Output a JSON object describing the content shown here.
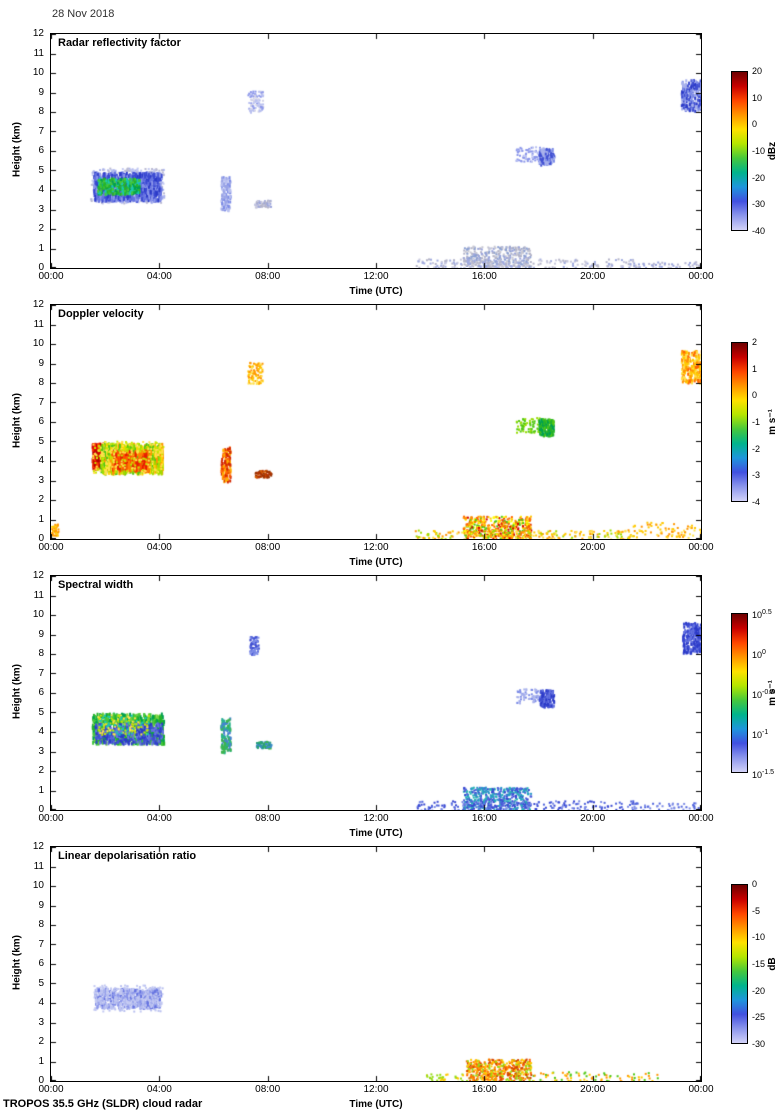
{
  "page": {
    "date_label": "28 Nov 2018",
    "footer_label": "TROPOS 35.5 GHz (SLDR) cloud radar",
    "background": "#ffffff"
  },
  "colormap": {
    "stops": [
      "#6e0000",
      "#c80000",
      "#ff4600",
      "#ff9600",
      "#ffe100",
      "#b4e600",
      "#46c83c",
      "#00b48c",
      "#1e96dc",
      "#4150e0",
      "#8c96ec",
      "#d2d2f8"
    ]
  },
  "chart_data": [
    {
      "type": "heatmap",
      "title": "Radar reflectivity factor",
      "xlabel": "Time (UTC)",
      "ylabel": "Height (km)",
      "xlim": [
        0,
        24
      ],
      "ylim": [
        0,
        12
      ],
      "xtick_hours": [
        0,
        4,
        8,
        12,
        16,
        20,
        24
      ],
      "xtick_labels": [
        "00:00",
        "04:00",
        "08:00",
        "12:00",
        "16:00",
        "20:00",
        "00:00"
      ],
      "ytick_values": [
        0,
        1,
        2,
        3,
        4,
        5,
        6,
        7,
        8,
        9,
        10,
        11,
        12
      ],
      "colorbar": {
        "unit": "dBz",
        "range": [
          20,
          -40
        ],
        "ticks": [
          "20",
          "10",
          "0",
          "-10",
          "-20",
          "-30",
          "-40"
        ]
      },
      "features": [
        {
          "name": "midlevel-cloud-fringe",
          "t": [
            1.45,
            4.15
          ],
          "h": [
            3.35,
            5.15
          ],
          "n": 420,
          "size": 2,
          "sy": 1,
          "colors": [
            "#c3c9f2",
            "#aab3ec",
            "#b9b9d2"
          ]
        },
        {
          "name": "midlevel-cloud-body",
          "t": [
            1.55,
            4.05
          ],
          "h": [
            3.55,
            4.95
          ],
          "n": 900,
          "size": 2,
          "sy": 2,
          "colors": [
            "#3a49d2",
            "#2b3ac8",
            "#6573e0",
            "#8c97ea"
          ]
        },
        {
          "name": "midlevel-cloud-core",
          "t": [
            1.7,
            3.25
          ],
          "h": [
            3.85,
            4.65
          ],
          "n": 320,
          "size": 2,
          "sy": 1.5,
          "colors": [
            "#28b428",
            "#46c83c",
            "#00a050",
            "#19c8b4"
          ]
        },
        {
          "name": "virga-0630",
          "t": [
            6.25,
            6.6
          ],
          "h": [
            3.0,
            4.75
          ],
          "n": 120,
          "size": 2,
          "sy": 1.5,
          "colors": [
            "#9aa4e6",
            "#b9c0f0",
            "#7d8ce6"
          ]
        },
        {
          "name": "cirrus-0730",
          "t": [
            7.25,
            7.8
          ],
          "h": [
            8.0,
            9.1
          ],
          "n": 95,
          "size": 2,
          "sy": 1,
          "colors": [
            "#b9c0f0",
            "#8c97ea",
            "#d2d2e6"
          ]
        },
        {
          "name": "patch-0745",
          "t": [
            7.5,
            8.1
          ],
          "h": [
            3.15,
            3.5
          ],
          "n": 75,
          "size": 2,
          "sy": 1,
          "colors": [
            "#b4b4c8",
            "#9aa4dc",
            "#c8c8dc"
          ]
        },
        {
          "name": "midlevel-1730",
          "t": [
            17.15,
            18.05
          ],
          "h": [
            5.5,
            6.25
          ],
          "n": 70,
          "size": 2,
          "sy": 1,
          "colors": [
            "#b9c0f0",
            "#8c97ea"
          ]
        },
        {
          "name": "midlevel-1815",
          "t": [
            18.0,
            18.55
          ],
          "h": [
            5.35,
            6.2
          ],
          "n": 140,
          "size": 2,
          "sy": 1.5,
          "colors": [
            "#4150d2",
            "#7d8ce6",
            "#aab3ec"
          ]
        },
        {
          "name": "high-cloud-2330",
          "t": [
            23.25,
            24.0
          ],
          "h": [
            8.1,
            9.7
          ],
          "n": 230,
          "size": 2,
          "sy": 1.5,
          "colors": [
            "#4150d2",
            "#7d8ce6",
            "#aab3ec",
            "#2b3ac8"
          ]
        },
        {
          "name": "boundary-layer-dense",
          "t": [
            15.2,
            17.7
          ],
          "h": [
            0.05,
            1.15
          ],
          "n": 380,
          "size": 2,
          "sy": 1,
          "colors": [
            "#b4b4c8",
            "#9aa4dc",
            "#8ca0d2",
            "#c8c8d2"
          ]
        },
        {
          "name": "boundary-layer-sparse",
          "t": [
            13.4,
            21.6
          ],
          "h": [
            0.0,
            0.5
          ],
          "n": 230,
          "size": 2,
          "sy": 1,
          "colors": [
            "#b4b4c8",
            "#a0aade",
            "#c8c8dc"
          ]
        },
        {
          "name": "surface-specks",
          "t": [
            21.5,
            24.0
          ],
          "h": [
            0.0,
            0.35
          ],
          "n": 50,
          "size": 2,
          "sy": 1,
          "colors": [
            "#b4b4d2",
            "#9aa4dc"
          ]
        }
      ]
    },
    {
      "type": "heatmap",
      "title": "Doppler velocity",
      "xlabel": "Time (UTC)",
      "ylabel": "Height (km)",
      "xlim": [
        0,
        24
      ],
      "ylim": [
        0,
        12
      ],
      "xtick_hours": [
        0,
        4,
        8,
        12,
        16,
        20,
        24
      ],
      "xtick_labels": [
        "00:00",
        "04:00",
        "08:00",
        "12:00",
        "16:00",
        "20:00",
        "00:00"
      ],
      "ytick_values": [
        0,
        1,
        2,
        3,
        4,
        5,
        6,
        7,
        8,
        9,
        10,
        11,
        12
      ],
      "colorbar": {
        "unit": "m s⁻¹",
        "range": [
          2,
          -4
        ],
        "ticks": [
          "2",
          "1",
          "0",
          "-1",
          "-2",
          "-3",
          "-4"
        ]
      },
      "features": [
        {
          "name": "midlevel-cloud-red-edge",
          "t": [
            1.5,
            1.9
          ],
          "h": [
            3.75,
            4.95
          ],
          "n": 150,
          "size": 2,
          "sy": 2.5,
          "colors": [
            "#d40000",
            "#ff3c00",
            "#b40000"
          ]
        },
        {
          "name": "midlevel-cloud-body",
          "t": [
            1.8,
            4.1
          ],
          "h": [
            3.55,
            4.95
          ],
          "n": 850,
          "size": 2,
          "sy": 3,
          "colors": [
            "#ffd200",
            "#a0dc00",
            "#50c814",
            "#ff9600",
            "#ffe14b"
          ]
        },
        {
          "name": "midlevel-cloud-red-streaks",
          "t": [
            2.2,
            3.6
          ],
          "h": [
            3.7,
            4.6
          ],
          "n": 170,
          "size": 2,
          "sy": 3,
          "colors": [
            "#ff5000",
            "#e61e00",
            "#ff7d00"
          ]
        },
        {
          "name": "midlevel-cloud-fringe",
          "t": [
            1.5,
            4.15
          ],
          "h": [
            3.4,
            5.05
          ],
          "n": 200,
          "size": 2,
          "sy": 1,
          "colors": [
            "#ffe14b",
            "#c8e600"
          ]
        },
        {
          "name": "virga-0630",
          "t": [
            6.25,
            6.6
          ],
          "h": [
            3.0,
            4.75
          ],
          "n": 120,
          "size": 2,
          "sy": 1.5,
          "colors": [
            "#ff6400",
            "#d42800",
            "#ffaf00"
          ]
        },
        {
          "name": "cirrus-0730",
          "t": [
            7.25,
            7.8
          ],
          "h": [
            8.0,
            9.1
          ],
          "n": 100,
          "size": 2,
          "sy": 1,
          "colors": [
            "#ffc800",
            "#ff9600",
            "#ffe14b"
          ]
        },
        {
          "name": "patch-0745",
          "t": [
            7.5,
            8.1
          ],
          "h": [
            3.2,
            3.55
          ],
          "n": 75,
          "size": 2,
          "sy": 1,
          "colors": [
            "#b43200",
            "#d45a00",
            "#963200"
          ]
        },
        {
          "name": "midlevel-1730",
          "t": [
            17.15,
            18.05
          ],
          "h": [
            5.5,
            6.25
          ],
          "n": 70,
          "size": 2,
          "sy": 1,
          "colors": [
            "#50c814",
            "#96dc00"
          ]
        },
        {
          "name": "midlevel-1815",
          "t": [
            18.0,
            18.55
          ],
          "h": [
            5.35,
            6.2
          ],
          "n": 140,
          "size": 2,
          "sy": 1.5,
          "colors": [
            "#28b428",
            "#50c814",
            "#00a050"
          ]
        },
        {
          "name": "high-cloud-2330",
          "t": [
            23.25,
            24.0
          ],
          "h": [
            8.05,
            9.7
          ],
          "n": 230,
          "size": 2,
          "sy": 1.5,
          "colors": [
            "#ffc800",
            "#ff9600",
            "#ffe14b",
            "#ff6400"
          ]
        },
        {
          "name": "boundary-layer-dense",
          "t": [
            15.2,
            17.7
          ],
          "h": [
            0.05,
            1.2
          ],
          "n": 500,
          "size": 2,
          "sy": 1,
          "colors": [
            "#d40000",
            "#ff6400",
            "#ffc800",
            "#50c814",
            "#ffff00",
            "#ff9600"
          ]
        },
        {
          "name": "boundary-layer-sparse",
          "t": [
            13.4,
            21.6
          ],
          "h": [
            0.0,
            0.5
          ],
          "n": 220,
          "size": 2,
          "sy": 1,
          "colors": [
            "#ffc800",
            "#ffe14b",
            "#a0dc00",
            "#ff9600"
          ]
        },
        {
          "name": "surface-specks",
          "t": [
            21.3,
            24.0
          ],
          "h": [
            0.1,
            0.9
          ],
          "n": 80,
          "size": 2,
          "sy": 1,
          "colors": [
            "#ffc800",
            "#ffe14b",
            "#ff9600"
          ]
        },
        {
          "name": "left-edge-patch",
          "t": [
            0.0,
            0.25
          ],
          "h": [
            0.2,
            0.8
          ],
          "n": 35,
          "size": 2,
          "sy": 1,
          "colors": [
            "#ff9600",
            "#ffc800"
          ]
        }
      ]
    },
    {
      "type": "heatmap",
      "title": "Spectral width",
      "xlabel": "Time (UTC)",
      "ylabel": "Height (km)",
      "xlim": [
        0,
        24
      ],
      "ylim": [
        0,
        12
      ],
      "xtick_hours": [
        0,
        4,
        8,
        12,
        16,
        20,
        24
      ],
      "xtick_labels": [
        "00:00",
        "04:00",
        "08:00",
        "12:00",
        "16:00",
        "20:00",
        "00:00"
      ],
      "ytick_values": [
        0,
        1,
        2,
        3,
        4,
        5,
        6,
        7,
        8,
        9,
        10,
        11,
        12
      ],
      "colorbar": {
        "unit": "m s⁻¹",
        "scale": "log",
        "ticks": [
          "10^0.5",
          "10^0",
          "10^-0.5",
          "10^-1",
          "10^-1.5"
        ]
      },
      "features": [
        {
          "name": "midlevel-cloud-body",
          "t": [
            1.5,
            4.15
          ],
          "h": [
            3.5,
            5.0
          ],
          "n": 850,
          "size": 2,
          "sy": 2,
          "colors": [
            "#46c83c",
            "#28b428",
            "#78d23c",
            "#00a050"
          ]
        },
        {
          "name": "midlevel-cloud-blue",
          "t": [
            1.6,
            4.1
          ],
          "h": [
            3.45,
            4.5
          ],
          "n": 380,
          "size": 2,
          "sy": 1.5,
          "colors": [
            "#4150d2",
            "#2b3ac8",
            "#6573e0"
          ]
        },
        {
          "name": "midlevel-cloud-specks",
          "t": [
            1.7,
            3.6
          ],
          "h": [
            3.9,
            4.9
          ],
          "n": 140,
          "size": 2,
          "sy": 1,
          "colors": [
            "#c8e600",
            "#ffe14b",
            "#19c8b4"
          ]
        },
        {
          "name": "virga-0630",
          "t": [
            6.25,
            6.6
          ],
          "h": [
            3.0,
            4.75
          ],
          "n": 120,
          "size": 2,
          "sy": 1.5,
          "colors": [
            "#3cb450",
            "#4682d2",
            "#28b48c"
          ]
        },
        {
          "name": "cirrus-0730",
          "t": [
            7.3,
            7.65
          ],
          "h": [
            8.0,
            8.95
          ],
          "n": 85,
          "size": 2,
          "sy": 1,
          "colors": [
            "#4150d2",
            "#7d8ce6"
          ]
        },
        {
          "name": "patch-0745",
          "t": [
            7.55,
            8.1
          ],
          "h": [
            3.2,
            3.55
          ],
          "n": 75,
          "size": 2,
          "sy": 1,
          "colors": [
            "#28a078",
            "#3c8cc8",
            "#3cb450"
          ]
        },
        {
          "name": "midlevel-1730",
          "t": [
            17.15,
            18.05
          ],
          "h": [
            5.5,
            6.25
          ],
          "n": 70,
          "size": 2,
          "sy": 1,
          "colors": [
            "#7d8ce6",
            "#aab3ec"
          ]
        },
        {
          "name": "midlevel-1815",
          "t": [
            18.0,
            18.55
          ],
          "h": [
            5.35,
            6.2
          ],
          "n": 140,
          "size": 2,
          "sy": 1.5,
          "colors": [
            "#4150d2",
            "#2b3ac8",
            "#6573e0"
          ]
        },
        {
          "name": "high-cloud-2330",
          "t": [
            23.3,
            24.0
          ],
          "h": [
            8.1,
            9.65
          ],
          "n": 220,
          "size": 2,
          "sy": 1.5,
          "colors": [
            "#3a49d2",
            "#6573e0",
            "#2b3ac8"
          ]
        },
        {
          "name": "boundary-layer-dense",
          "t": [
            15.2,
            17.7
          ],
          "h": [
            0.05,
            1.2
          ],
          "n": 500,
          "size": 2,
          "sy": 1,
          "colors": [
            "#3a49d2",
            "#5064dc",
            "#2896c8",
            "#28b4b4"
          ]
        },
        {
          "name": "boundary-layer-sparse",
          "t": [
            13.4,
            21.6
          ],
          "h": [
            0.0,
            0.5
          ],
          "n": 200,
          "size": 2,
          "sy": 1,
          "colors": [
            "#5064dc",
            "#7d8ce6",
            "#3a49d2"
          ]
        },
        {
          "name": "surface-specks",
          "t": [
            21.5,
            24.0
          ],
          "h": [
            0.0,
            0.4
          ],
          "n": 45,
          "size": 2,
          "sy": 1,
          "colors": [
            "#5064dc",
            "#7d8ce6"
          ]
        }
      ]
    },
    {
      "type": "heatmap",
      "title": "Linear depolarisation ratio",
      "xlabel": "Time (UTC)",
      "ylabel": "Height (km)",
      "xlim": [
        0,
        24
      ],
      "ylim": [
        0,
        12
      ],
      "xtick_hours": [
        0,
        4,
        8,
        12,
        16,
        20,
        24
      ],
      "xtick_labels": [
        "00:00",
        "04:00",
        "08:00",
        "12:00",
        "16:00",
        "20:00",
        "00:00"
      ],
      "ytick_values": [
        0,
        1,
        2,
        3,
        4,
        5,
        6,
        7,
        8,
        9,
        10,
        11,
        12
      ],
      "colorbar": {
        "unit": "dB",
        "range": [
          0,
          -30
        ],
        "ticks": [
          "0",
          "-5",
          "-10",
          "-15",
          "-20",
          "-25",
          "-30"
        ]
      },
      "features": [
        {
          "name": "midlevel-cloud",
          "t": [
            1.6,
            4.05
          ],
          "h": [
            3.8,
            4.8
          ],
          "n": 550,
          "size": 2,
          "sy": 1.5,
          "colors": [
            "#6573e0",
            "#8c97ea",
            "#aab3ec",
            "#c3c9f2"
          ]
        },
        {
          "name": "midlevel-cloud-fringe",
          "t": [
            1.55,
            4.1
          ],
          "h": [
            3.6,
            4.95
          ],
          "n": 180,
          "size": 2,
          "sy": 1,
          "colors": [
            "#c3c9f2",
            "#b9c0f0"
          ]
        },
        {
          "name": "boundary-layer-dense",
          "t": [
            15.3,
            17.7
          ],
          "h": [
            0.05,
            1.15
          ],
          "n": 480,
          "size": 2,
          "sy": 1,
          "colors": [
            "#ff9600",
            "#d44600",
            "#ffc800",
            "#96dc14",
            "#ff6400"
          ]
        },
        {
          "name": "boundary-layer-sparse",
          "t": [
            17.7,
            22.5
          ],
          "h": [
            0.0,
            0.5
          ],
          "n": 80,
          "size": 2,
          "sy": 1,
          "colors": [
            "#50c814",
            "#ff9600",
            "#ffc800"
          ]
        },
        {
          "name": "specks-1400",
          "t": [
            13.8,
            15.2
          ],
          "h": [
            0.0,
            0.4
          ],
          "n": 35,
          "size": 2,
          "sy": 1,
          "colors": [
            "#ffc800",
            "#96dc14"
          ]
        }
      ]
    }
  ]
}
